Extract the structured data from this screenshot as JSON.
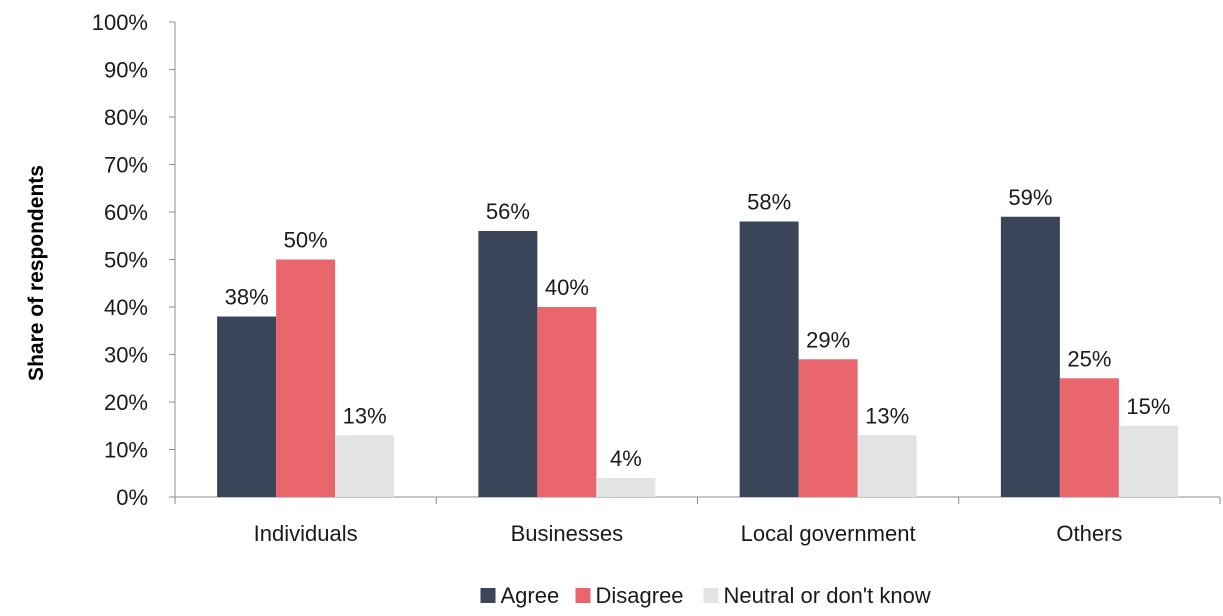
{
  "chart_data": {
    "type": "bar",
    "title": "",
    "xlabel": "",
    "ylabel": "Share of respondents",
    "categories": [
      "Individuals",
      "Businesses",
      "Local government",
      "Others"
    ],
    "series": [
      {
        "name": "Agree",
        "values": [
          38,
          56,
          58,
          59
        ],
        "labels": [
          "38%",
          "56%",
          "58%",
          "59%"
        ],
        "color": "#3b4559"
      },
      {
        "name": "Disagree",
        "values": [
          50,
          40,
          29,
          25
        ],
        "labels": [
          "50%",
          "40%",
          "29%",
          "25%"
        ],
        "color": "#e8666c"
      },
      {
        "name": "Neutral or don't know",
        "values": [
          13,
          4,
          13,
          15
        ],
        "labels": [
          "13%",
          "4%",
          "13%",
          "15%"
        ],
        "color": "#e3e3e3"
      }
    ],
    "ylim": [
      0,
      100
    ],
    "yticks": [
      0,
      10,
      20,
      30,
      40,
      50,
      60,
      70,
      80,
      90,
      100
    ],
    "ytick_labels": [
      "0%",
      "10%",
      "20%",
      "30%",
      "40%",
      "50%",
      "60%",
      "70%",
      "80%",
      "90%",
      "100%"
    ],
    "grid": false,
    "legend_position": "bottom"
  }
}
